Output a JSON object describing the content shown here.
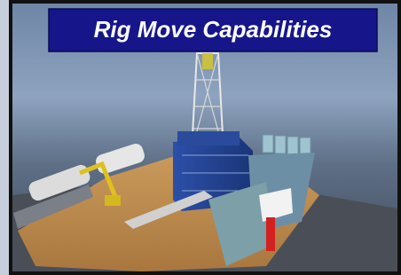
{
  "banner": {
    "title": "Rig Move Capabilities"
  }
}
